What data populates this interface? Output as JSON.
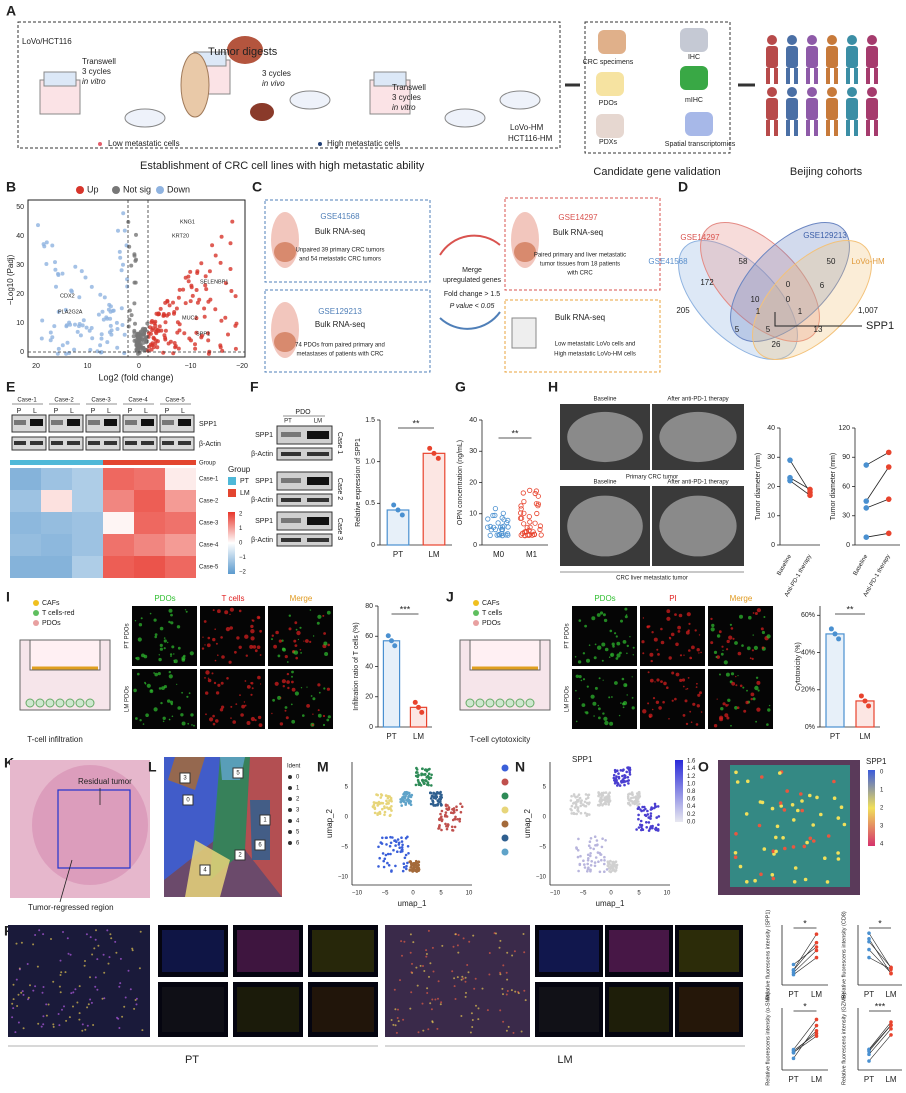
{
  "A": {
    "label": "A",
    "start": "LoVo/HCT116",
    "transwell1": [
      "Transwell",
      "3 cycles",
      "in vitro"
    ],
    "digests": "Tumor digests",
    "vivo": [
      "3 cycles",
      "in vivo"
    ],
    "transwell2": [
      "Transwell",
      "3 cycles",
      "in vitro"
    ],
    "lines": [
      "LoVo-HM",
      "HCT116-HM"
    ],
    "low": "Low metastatic cells",
    "high": "High metastatic cells",
    "caption": "Establishment of CRC cell lines with high metastatic ability",
    "validation": [
      "CRC specimens",
      "IHC",
      "PDOs",
      "mIHC",
      "PDXs",
      "Spatial transcriptomics"
    ],
    "validation_caption": "Candidate gene validation",
    "cohorts": "Beijing cohorts"
  },
  "B": {
    "label": "B",
    "legend": [
      "Up",
      "Not sig",
      "Down"
    ],
    "ylabel": "−Log10 (Padj)",
    "xlabel": "Log2 (fold change)",
    "yticks": [
      "0",
      "10",
      "20",
      "30",
      "40",
      "50"
    ],
    "xticks": [
      "20",
      "10",
      "0",
      "−10",
      "−20"
    ],
    "genes": [
      "KNG1",
      "KRT20",
      "SELENBP1",
      "MUC2",
      "SPP1",
      "CDX2",
      "PLA2G2A"
    ]
  },
  "C": {
    "label": "C",
    "boxes": [
      {
        "id": "GSE41568",
        "method": "Bulk RNA-seq",
        "desc": [
          "Unpaired 39 primary CRC tumors",
          "and 54 metastatic CRC tumors"
        ]
      },
      {
        "id": "GSE129213",
        "method": "Bulk RNA-seq",
        "desc": [
          "74 PDOs from paired primary and",
          "metastases of patients with CRC"
        ]
      },
      {
        "id": "GSE14297",
        "method": "Bulk RNA-seq",
        "desc": [
          "Paired primary and liver metastatic",
          "tumor tissues from 18 patients",
          "with CRC"
        ]
      },
      {
        "method": "Bulk RNA-seq",
        "desc": [
          "Low metastatic LoVo cells and",
          "High metastatic LoVo-HM cells"
        ]
      }
    ],
    "merge": [
      "Merge",
      "upregulated genes",
      "Fold change > 1.5",
      "P value < 0.05"
    ]
  },
  "D": {
    "label": "D",
    "sets": [
      "GSE14297",
      "GSE129213",
      "GSE41568",
      "LoVo-HM"
    ],
    "counts": [
      "58",
      "50",
      "172",
      "0",
      "6",
      "10",
      "0",
      "1,007",
      "205",
      "5",
      "1",
      "1",
      "13",
      "5",
      "26"
    ],
    "target": "SPP1"
  },
  "E": {
    "label": "E",
    "cases": [
      "Case-1",
      "Case-2",
      "Case-3",
      "Case-4",
      "Case-5"
    ],
    "lanes": [
      "P",
      "L"
    ],
    "blots": [
      "SPP1",
      "β-Actin"
    ],
    "heatmap": {
      "group_title": "Group",
      "groups": [
        "PT",
        "LM"
      ],
      "rows": [
        "Case-1",
        "Case-2",
        "Case-3",
        "Case-4",
        "Case-5"
      ],
      "values": [
        [
          -1.5,
          -1.2,
          -1.0,
          1.5,
          1.4,
          0.2
        ],
        [
          -1.2,
          0.3,
          -1.0,
          1.2,
          1.6,
          1.0
        ],
        [
          -1.4,
          -1.3,
          -1.2,
          0.1,
          1.5,
          1.4
        ],
        [
          -1.3,
          -1.4,
          -1.2,
          1.4,
          1.2,
          1.0
        ],
        [
          -1.5,
          -1.5,
          -1.0,
          1.6,
          1.7,
          1.5
        ]
      ],
      "scale": [
        "2",
        "1",
        "0",
        "−1",
        "−2"
      ]
    }
  },
  "F": {
    "label": "F",
    "blot": {
      "title": "PDO",
      "lanes": [
        "PT",
        "LM"
      ],
      "cases": [
        "Case 1",
        "Case 2",
        "Case 3"
      ],
      "proteins": [
        "SPP1",
        "β-Actin"
      ]
    },
    "chart": {
      "ylabel": "Relative expression of SPP1",
      "categories": [
        "PT",
        "LM"
      ],
      "values": [
        0.42,
        1.1
      ],
      "ylim": [
        0,
        1.5
      ],
      "yticks": [
        0,
        0.5,
        {
          "value": 1,
          "label": "1.0"
        },
        1.5
      ],
      "sig": "**"
    }
  },
  "G": {
    "label": "G",
    "chart": {
      "ylabel": "OPN concentration (ng/mL)",
      "categories": [
        "M0",
        "M1"
      ],
      "ylim": [
        0,
        40
      ],
      "yticks": [
        0,
        10,
        20,
        30,
        40
      ],
      "sig": "**"
    }
  },
  "H": {
    "label": "H",
    "image_labels": [
      "Baseline",
      "After anti-PD-1 therapy",
      "Primary CRC tumor",
      "Baseline",
      "After anti-PD-1 therapy",
      "CRC liver metastatic tumor"
    ],
    "charts": [
      {
        "ylabel": "Tumor diameter (mm)",
        "categories": [
          "Baseline",
          "Anti-PD-1 therapy"
        ],
        "ylim": [
          0,
          40
        ],
        "yticks": [
          0,
          10,
          20,
          30,
          40
        ],
        "series": [
          {
            "values": [
              29,
              18
            ]
          },
          {
            "values": [
              23,
              19
            ]
          },
          {
            "values": [
              22,
              17
            ]
          }
        ]
      },
      {
        "ylabel": "Tumor diameter (mm)",
        "categories": [
          "Baseline",
          "Anti-PD-1 therapy"
        ],
        "ylim": [
          0,
          120
        ],
        "yticks": [
          0,
          30,
          60,
          90,
          120
        ],
        "series": [
          {
            "values": [
              82,
              95
            ]
          },
          {
            "values": [
              45,
              80
            ]
          },
          {
            "values": [
              38,
              47
            ]
          },
          {
            "values": [
              8,
              12
            ]
          }
        ]
      }
    ]
  },
  "I": {
    "label": "I",
    "legend": [
      "CAFs",
      "T cells-red",
      "PDOs"
    ],
    "caption": "T-cell infiltration",
    "columns": [
      "PDOs",
      "T cells",
      "Merge"
    ],
    "rows": [
      "PT PDOs",
      "LM PDOs"
    ],
    "chart": {
      "ylabel": "Infiltration ratio of T cells (%)",
      "categories": [
        "PT",
        "LM"
      ],
      "values": [
        57,
        13
      ],
      "ylim": [
        0,
        80
      ],
      "yticks": [
        0,
        20,
        40,
        60,
        80
      ],
      "sig": "***"
    }
  },
  "J": {
    "label": "J",
    "legend": [
      "CAFs",
      "T cells",
      "PDOs"
    ],
    "caption": "T-cell cytotoxicity",
    "columns": [
      "PDOs",
      "PI",
      "Merge"
    ],
    "rows": [
      "PT PDOs",
      "LM PDOs"
    ],
    "chart": {
      "ylabel": "Cytotoxicity (%)",
      "categories": [
        "PT",
        "LM"
      ],
      "values": [
        50,
        14
      ],
      "ylim": [
        0,
        65
      ],
      "yticks": [
        {
          "value": 0,
          "label": "0%"
        },
        {
          "value": 20,
          "label": "20%"
        },
        {
          "value": 40,
          "label": "40%"
        },
        {
          "value": 60,
          "label": "60%"
        }
      ],
      "sig": "**"
    }
  },
  "K": {
    "label": "K",
    "annotations": [
      "Residual tumor",
      "Tumor-regressed region"
    ]
  },
  "L": {
    "label": "L",
    "legend_title": "Ident",
    "idents": [
      "0",
      "1",
      "2",
      "3",
      "4",
      "5",
      "6"
    ]
  },
  "M": {
    "label": "M",
    "xlabel": "umap_1",
    "ylabel": "umap_2",
    "xticks": [
      "−10",
      "−5",
      "0",
      "5",
      "10"
    ],
    "yticks": [
      "−10",
      "−5",
      "0",
      "5"
    ]
  },
  "N": {
    "label": "N",
    "title": "SPP1",
    "scale": [
      "1.6",
      "1.4",
      "1.2",
      "1.0",
      "0.8",
      "0.6",
      "0.4",
      "0.2",
      "0.0"
    ],
    "xlabel": "umap_1",
    "ylabel": "umap_2",
    "xticks": [
      "−10",
      "−5",
      "0",
      "5",
      "10"
    ],
    "yticks": [
      "−10",
      "−5",
      "0",
      "5"
    ]
  },
  "O": {
    "label": "O",
    "title": "SPP1",
    "scale": [
      "0",
      "1",
      "2",
      "3",
      "4"
    ]
  },
  "P": {
    "label": "P",
    "groups": [
      "PT",
      "LM"
    ],
    "charts": [
      {
        "ylabel": "Relative fluorescens intensity (SPP1)",
        "categories": [
          "PT",
          "LM"
        ],
        "sig": "*"
      },
      {
        "ylabel": "Relative fluorescens intensity (CD8)",
        "categories": [
          "PT",
          "LM"
        ],
        "sig": "*"
      },
      {
        "ylabel": "Relative fluorescens intensity (α-SMA)",
        "categories": [
          "PT",
          "LM"
        ],
        "sig": "*"
      },
      {
        "ylabel": "Relative fluorescens intensity (GZMB)",
        "categories": [
          "PT",
          "LM"
        ],
        "sig": "***"
      }
    ]
  }
}
